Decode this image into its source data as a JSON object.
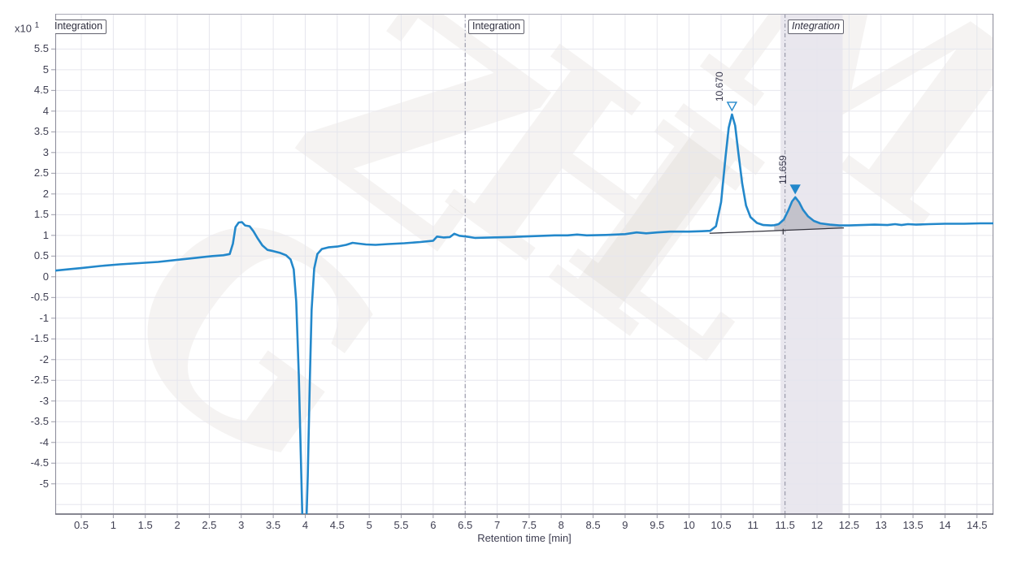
{
  "y_axis": {
    "scale_prefix": "x10",
    "scale_exponent": "1",
    "ticks": [
      5.5,
      5,
      4.5,
      4,
      3.5,
      3,
      2.5,
      2,
      1.5,
      1,
      0.5,
      0,
      -0.5,
      -1,
      -1.5,
      -2,
      -2.5,
      -3,
      -3.5,
      -4,
      -4.5,
      -5
    ]
  },
  "x_axis": {
    "title": "Retention time [min]",
    "ticks": [
      0.5,
      1,
      1.5,
      2,
      2.5,
      3,
      3.5,
      4,
      4.5,
      5,
      5.5,
      6,
      6.5,
      7,
      7.5,
      8,
      8.5,
      9,
      9.5,
      10,
      10.5,
      11,
      11.5,
      12,
      12.5,
      13,
      13.5,
      14,
      14.5
    ]
  },
  "annotations": [
    {
      "label": "Integration",
      "style": "normal"
    },
    {
      "label": "Integration",
      "style": "normal"
    },
    {
      "label": "Integration",
      "style": "italic"
    }
  ],
  "watermark": {
    "letters": [
      "G",
      "Z",
      "H",
      "L",
      "M"
    ]
  },
  "chart_data": {
    "type": "line",
    "title": "",
    "xlabel": "Retention time [min]",
    "ylabel": "x10^1",
    "grid": "on",
    "xlim": [
      0.093,
      14.757
    ],
    "ylim": [
      -5.73,
      6.35
    ],
    "x_ticks": [
      0.5,
      1,
      1.5,
      2,
      2.5,
      3,
      3.5,
      4,
      4.5,
      5,
      5.5,
      6,
      6.5,
      7,
      7.5,
      8,
      8.5,
      9,
      9.5,
      10,
      10.5,
      11,
      11.5,
      12,
      12.5,
      13,
      13.5,
      14,
      14.5
    ],
    "y_ticks": [
      5.5,
      5,
      4.5,
      4,
      3.5,
      3,
      2.5,
      2,
      1.5,
      1,
      0.5,
      0,
      -0.5,
      -1,
      -1.5,
      -2,
      -2.5,
      -3,
      -3.5,
      -4,
      -4.5,
      -5
    ],
    "dashed_boundaries_min": [
      6.5,
      11.5
    ],
    "shaded_region_min": [
      11.43,
      12.4
    ],
    "baseline": {
      "start": [
        10.32,
        1.05
      ],
      "end": [
        12.42,
        1.18
      ],
      "separation_tick_min": 11.47
    },
    "peak_fill_range_min": [
      11.33,
      12.45
    ],
    "peaks": [
      {
        "label": "10.670",
        "rt": 10.67,
        "apex": 3.92,
        "marker": "open"
      },
      {
        "label": "11.659",
        "rt": 11.659,
        "apex": 1.92,
        "marker": "filled"
      }
    ],
    "colors": {
      "trace": "#2388cb",
      "grid": "#e6e6ed",
      "region_fill": "#e9e7ee",
      "dashed_line": "#8c8c9e",
      "baseline": "#33333d",
      "peak_fill": "#b9b9c2",
      "text": "#3f3f52",
      "axis_border": "#8a8a98",
      "axis_bottom": "#5f5f6d",
      "tick_mark": "#9a9aa8"
    },
    "series": [
      {
        "name": "signal",
        "points": [
          [
            0.09,
            0.15
          ],
          [
            0.3,
            0.18
          ],
          [
            0.5,
            0.21
          ],
          [
            0.8,
            0.26
          ],
          [
            1.1,
            0.3
          ],
          [
            1.4,
            0.33
          ],
          [
            1.7,
            0.36
          ],
          [
            2.0,
            0.41
          ],
          [
            2.3,
            0.46
          ],
          [
            2.55,
            0.5
          ],
          [
            2.72,
            0.52
          ],
          [
            2.82,
            0.55
          ],
          [
            2.87,
            0.8
          ],
          [
            2.91,
            1.2
          ],
          [
            2.96,
            1.31
          ],
          [
            3.01,
            1.32
          ],
          [
            3.06,
            1.24
          ],
          [
            3.13,
            1.22
          ],
          [
            3.19,
            1.1
          ],
          [
            3.26,
            0.92
          ],
          [
            3.33,
            0.76
          ],
          [
            3.41,
            0.65
          ],
          [
            3.5,
            0.62
          ],
          [
            3.6,
            0.58
          ],
          [
            3.7,
            0.52
          ],
          [
            3.77,
            0.42
          ],
          [
            3.82,
            0.18
          ],
          [
            3.86,
            -0.6
          ],
          [
            3.9,
            -2.4
          ],
          [
            3.93,
            -4.3
          ],
          [
            3.96,
            -6.1
          ],
          [
            4.01,
            -6.3
          ],
          [
            4.04,
            -4.8
          ],
          [
            4.07,
            -2.6
          ],
          [
            4.1,
            -0.8
          ],
          [
            4.14,
            0.2
          ],
          [
            4.19,
            0.55
          ],
          [
            4.26,
            0.67
          ],
          [
            4.36,
            0.71
          ],
          [
            4.5,
            0.73
          ],
          [
            4.64,
            0.77
          ],
          [
            4.74,
            0.82
          ],
          [
            4.84,
            0.8
          ],
          [
            4.95,
            0.78
          ],
          [
            5.1,
            0.77
          ],
          [
            5.3,
            0.79
          ],
          [
            5.55,
            0.81
          ],
          [
            5.8,
            0.84
          ],
          [
            6.0,
            0.87
          ],
          [
            6.06,
            0.97
          ],
          [
            6.16,
            0.95
          ],
          [
            6.26,
            0.96
          ],
          [
            6.33,
            1.04
          ],
          [
            6.41,
            0.99
          ],
          [
            6.52,
            0.97
          ],
          [
            6.65,
            0.94
          ],
          [
            6.9,
            0.95
          ],
          [
            7.2,
            0.96
          ],
          [
            7.55,
            0.98
          ],
          [
            7.9,
            1.0
          ],
          [
            8.1,
            1.0
          ],
          [
            8.25,
            1.02
          ],
          [
            8.4,
            1.0
          ],
          [
            8.7,
            1.01
          ],
          [
            9.0,
            1.03
          ],
          [
            9.18,
            1.07
          ],
          [
            9.33,
            1.05
          ],
          [
            9.5,
            1.07
          ],
          [
            9.7,
            1.09
          ],
          [
            10.0,
            1.09
          ],
          [
            10.2,
            1.1
          ],
          [
            10.33,
            1.11
          ],
          [
            10.42,
            1.22
          ],
          [
            10.5,
            1.8
          ],
          [
            10.57,
            2.9
          ],
          [
            10.62,
            3.6
          ],
          [
            10.67,
            3.92
          ],
          [
            10.72,
            3.65
          ],
          [
            10.77,
            3.0
          ],
          [
            10.83,
            2.25
          ],
          [
            10.89,
            1.72
          ],
          [
            10.96,
            1.44
          ],
          [
            11.06,
            1.3
          ],
          [
            11.16,
            1.25
          ],
          [
            11.28,
            1.24
          ],
          [
            11.33,
            1.245
          ],
          [
            11.4,
            1.27
          ],
          [
            11.48,
            1.38
          ],
          [
            11.55,
            1.6
          ],
          [
            11.61,
            1.82
          ],
          [
            11.66,
            1.92
          ],
          [
            11.72,
            1.8
          ],
          [
            11.78,
            1.62
          ],
          [
            11.86,
            1.46
          ],
          [
            11.95,
            1.35
          ],
          [
            12.05,
            1.29
          ],
          [
            12.2,
            1.26
          ],
          [
            12.35,
            1.24
          ],
          [
            12.5,
            1.24
          ],
          [
            12.7,
            1.25
          ],
          [
            12.9,
            1.26
          ],
          [
            13.1,
            1.25
          ],
          [
            13.22,
            1.27
          ],
          [
            13.32,
            1.25
          ],
          [
            13.42,
            1.27
          ],
          [
            13.55,
            1.26
          ],
          [
            13.75,
            1.27
          ],
          [
            14.0,
            1.28
          ],
          [
            14.3,
            1.28
          ],
          [
            14.55,
            1.29
          ],
          [
            14.76,
            1.29
          ]
        ]
      }
    ]
  }
}
